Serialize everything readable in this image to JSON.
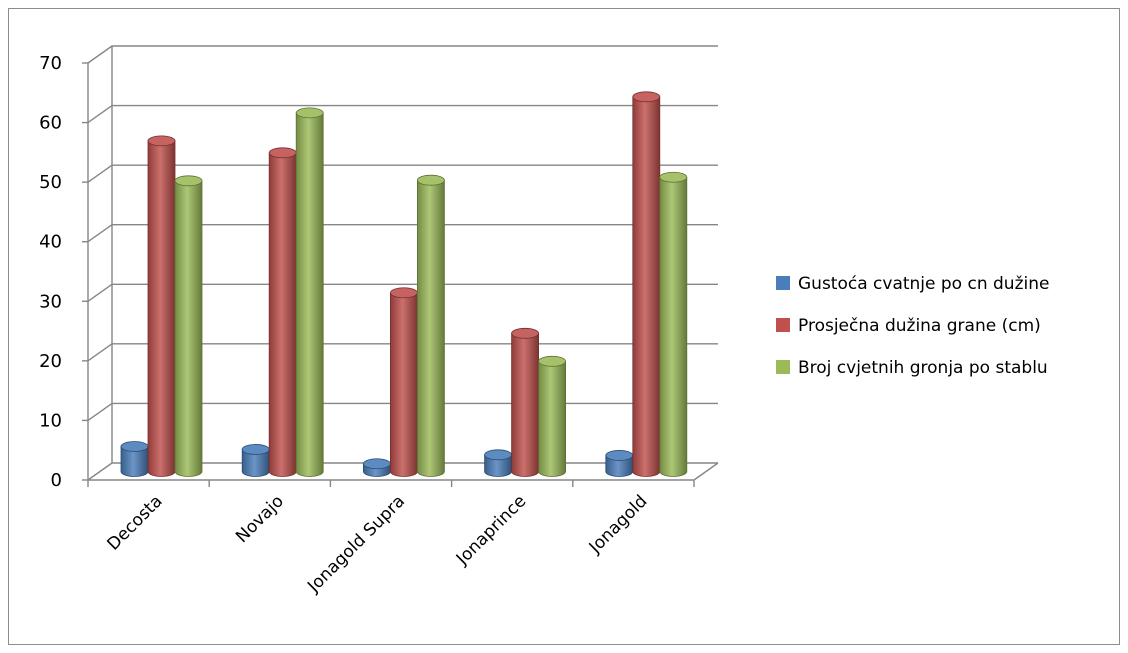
{
  "chart_data": {
    "type": "bar",
    "title": "",
    "xlabel": "",
    "ylabel": "",
    "categories": [
      "Decosta",
      "Novajo",
      "Jonagold Supra",
      "Jonaprince",
      "Jonagold"
    ],
    "series": [
      {
        "name": "Gustoća cvatnje po cn dužine",
        "values": [
          4.2,
          3.7,
          1.3,
          2.8,
          2.7
        ],
        "color": "#4a7ebb"
      },
      {
        "name": "Prosječna dužina grane (cm)",
        "values": [
          55.5,
          53.5,
          30,
          23.2,
          62.9
        ],
        "color": "#c0504d"
      },
      {
        "name": "Broj cvjetnih gronja po stablu",
        "values": [
          48.8,
          60.2,
          48.9,
          18.5,
          49.4
        ],
        "color": "#9bbb59"
      }
    ],
    "ylim": [
      0,
      70
    ],
    "yticks": [
      "0",
      "10",
      "20",
      "30",
      "40",
      "50",
      "60",
      "70"
    ],
    "grid": true,
    "legend_position": "right"
  }
}
